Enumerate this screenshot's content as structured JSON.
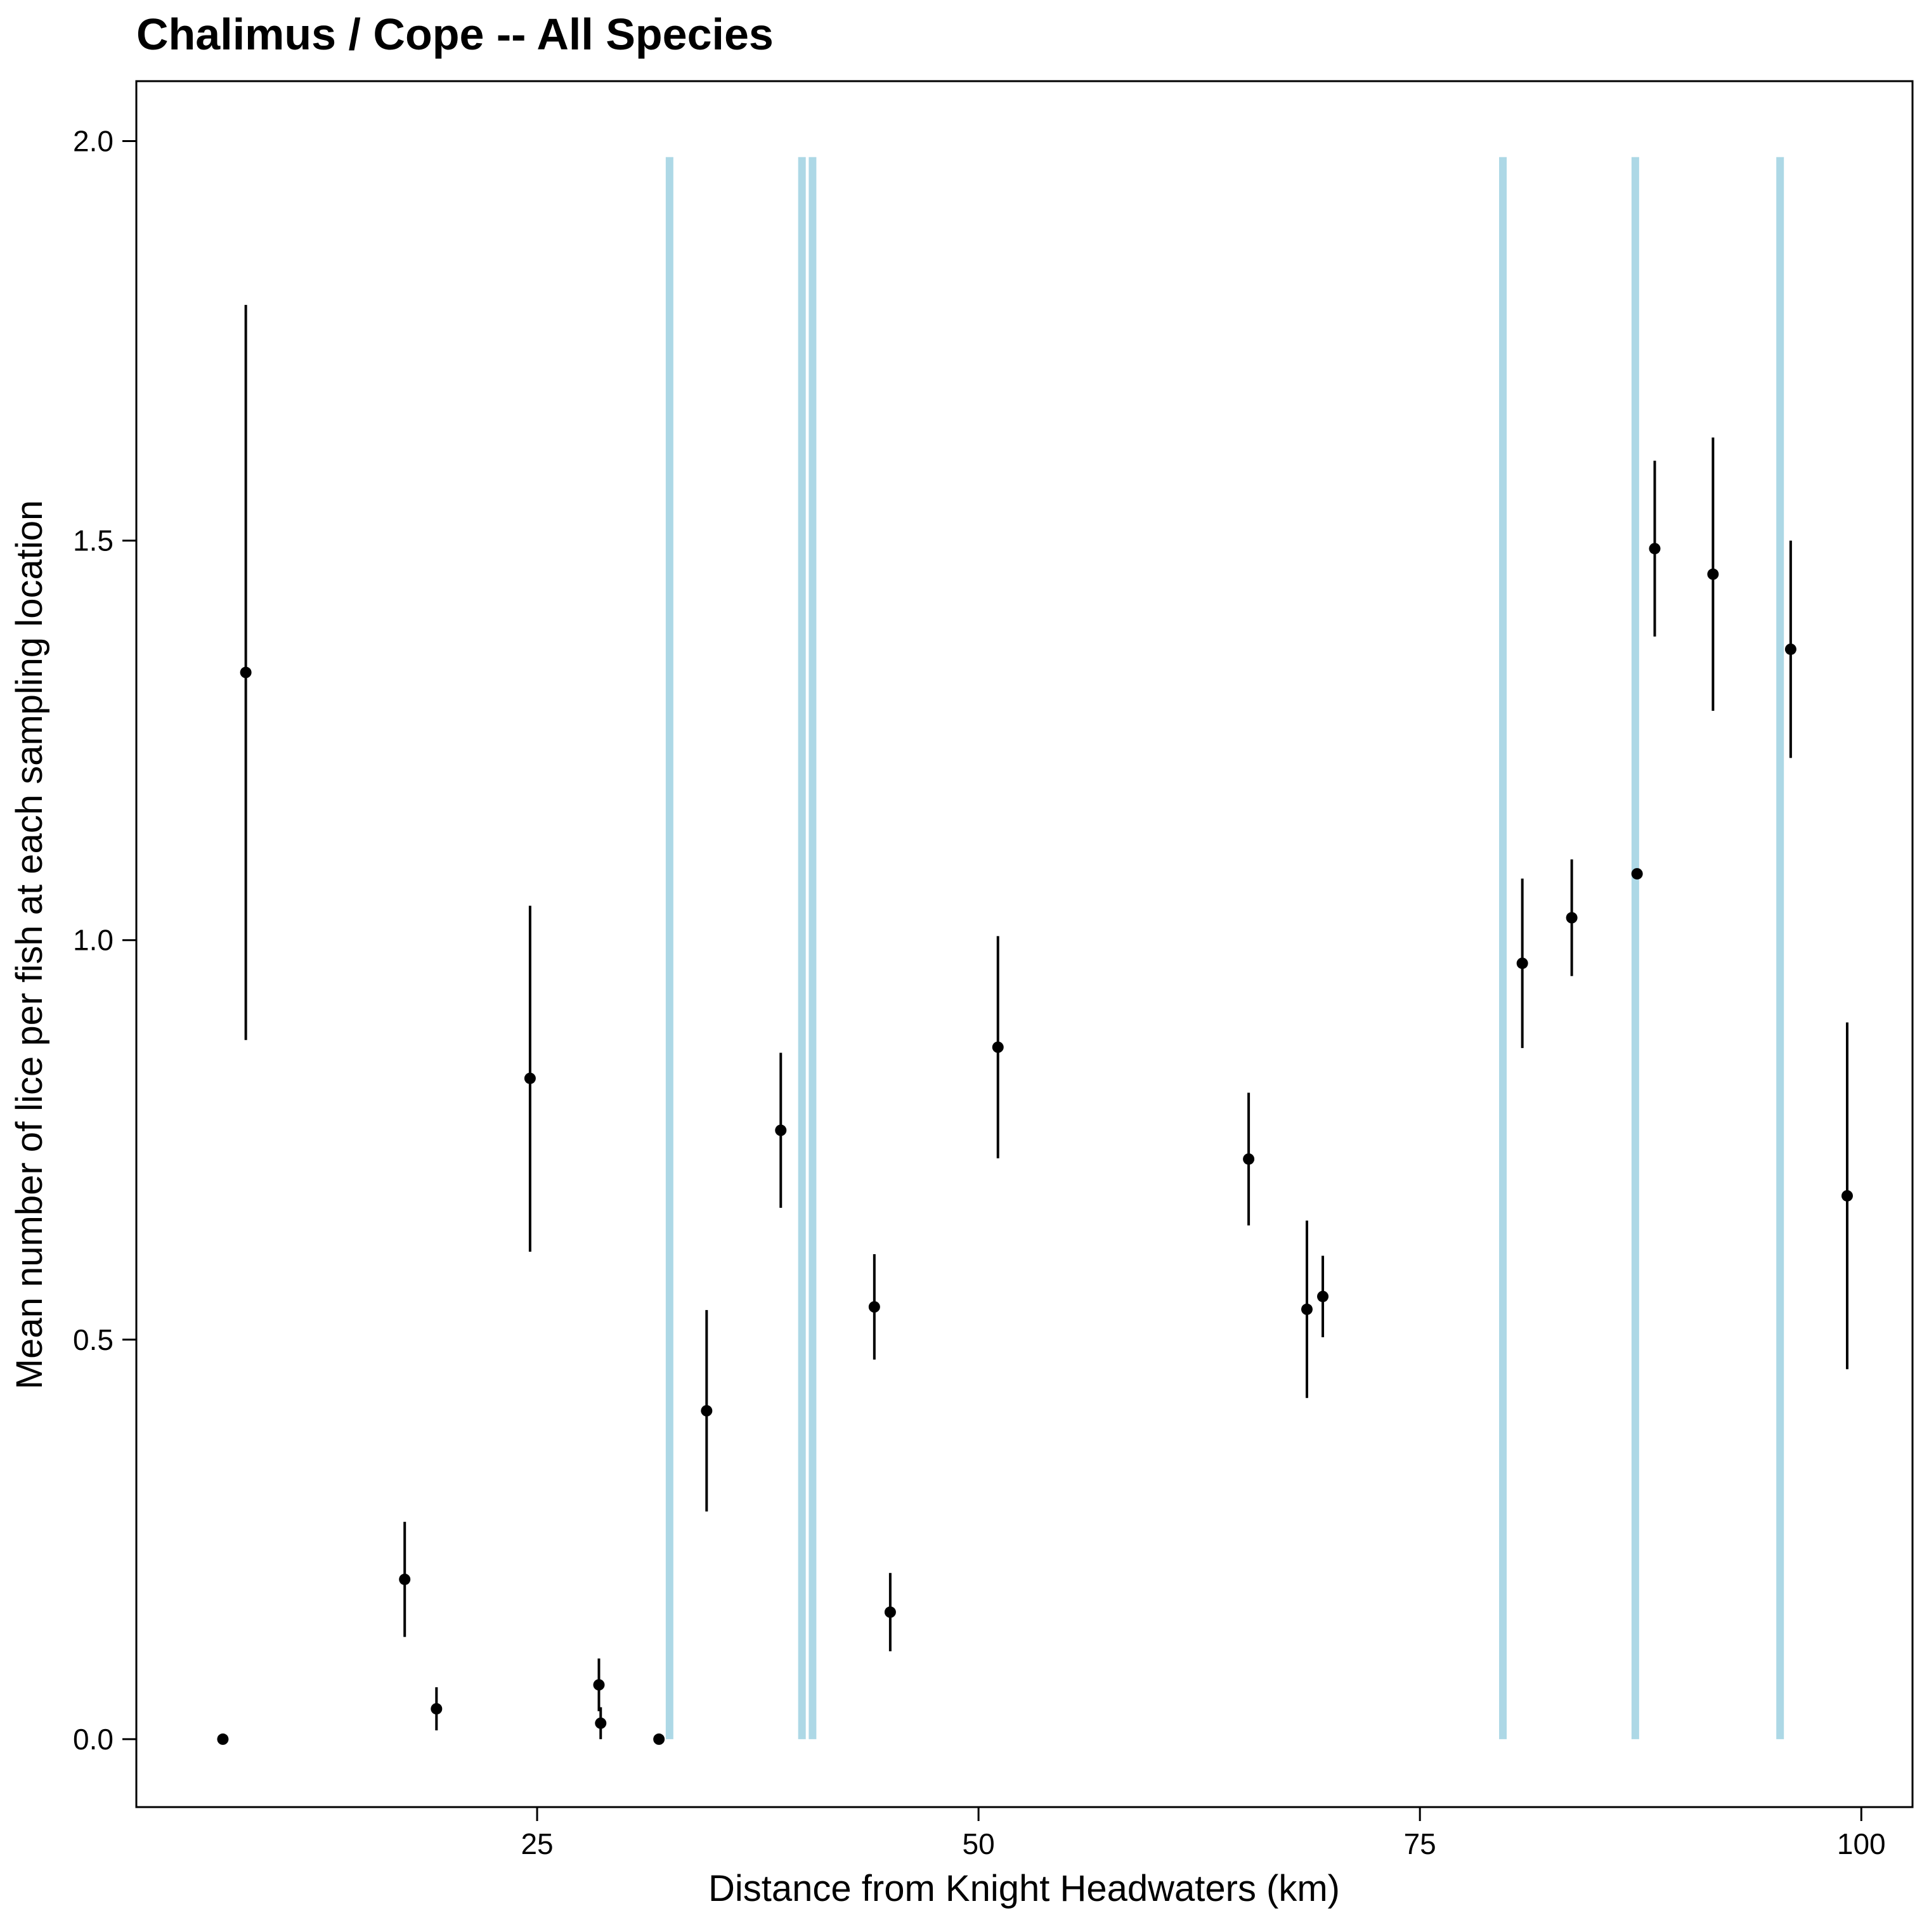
{
  "chart_data": {
    "type": "scatter",
    "title": "Chalimus / Cope -- All Species",
    "xlabel": "Distance from Knight Headwaters (km)",
    "ylabel": "Mean number of lice per fish at each sampling location",
    "xlim": [
      2.3,
      102.9
    ],
    "ylim": [
      -0.085,
      2.075
    ],
    "x_ticks": [
      25,
      50,
      75,
      100
    ],
    "x_tick_labels": [
      "25",
      "50",
      "75",
      "100"
    ],
    "y_ticks": [
      0.0,
      0.5,
      1.0,
      1.5,
      2.0
    ],
    "y_tick_labels": [
      "0.0",
      "0.5",
      "1.0",
      "1.5",
      "2.0"
    ],
    "grid": false,
    "legend": "none",
    "colors": {
      "points": "#000000",
      "reference_lines": "#add8e6",
      "frame": "#000000"
    },
    "reference_lines": {
      "orientation": "vertical",
      "y_range": [
        0.0,
        1.98
      ],
      "x": [
        32.5,
        40.0,
        40.6,
        79.7,
        87.2,
        95.4
      ]
    },
    "points": [
      {
        "x": 7.2,
        "y": 0.0
      },
      {
        "x": 8.5,
        "y": 1.335,
        "ylo": 0.875,
        "yhi": 1.795
      },
      {
        "x": 17.5,
        "y": 0.2,
        "ylo": 0.128,
        "yhi": 0.272
      },
      {
        "x": 19.3,
        "y": 0.038,
        "ylo": 0.011,
        "yhi": 0.065
      },
      {
        "x": 24.6,
        "y": 0.827,
        "ylo": 0.61,
        "yhi": 1.043
      },
      {
        "x": 28.5,
        "y": 0.068,
        "ylo": 0.035,
        "yhi": 0.101
      },
      {
        "x": 28.6,
        "y": 0.02,
        "ylo": 0.0,
        "yhi": 0.04
      },
      {
        "x": 31.9,
        "y": 0.0
      },
      {
        "x": 34.6,
        "y": 0.411,
        "ylo": 0.285,
        "yhi": 0.537
      },
      {
        "x": 38.8,
        "y": 0.762,
        "ylo": 0.665,
        "yhi": 0.859
      },
      {
        "x": 44.1,
        "y": 0.541,
        "ylo": 0.475,
        "yhi": 0.607
      },
      {
        "x": 45.0,
        "y": 0.159,
        "ylo": 0.11,
        "yhi": 0.208
      },
      {
        "x": 51.1,
        "y": 0.866,
        "ylo": 0.727,
        "yhi": 1.005
      },
      {
        "x": 65.3,
        "y": 0.726,
        "ylo": 0.643,
        "yhi": 0.809
      },
      {
        "x": 68.6,
        "y": 0.538,
        "ylo": 0.427,
        "yhi": 0.649
      },
      {
        "x": 69.5,
        "y": 0.554,
        "ylo": 0.503,
        "yhi": 0.605
      },
      {
        "x": 80.8,
        "y": 0.971,
        "ylo": 0.865,
        "yhi": 1.077
      },
      {
        "x": 83.6,
        "y": 1.028,
        "ylo": 0.955,
        "yhi": 1.101
      },
      {
        "x": 87.3,
        "y": 1.083
      },
      {
        "x": 88.3,
        "y": 1.49,
        "ylo": 1.38,
        "yhi": 1.6
      },
      {
        "x": 91.6,
        "y": 1.458,
        "ylo": 1.287,
        "yhi": 1.629
      },
      {
        "x": 96.0,
        "y": 1.364,
        "ylo": 1.228,
        "yhi": 1.5
      },
      {
        "x": 99.2,
        "y": 0.68,
        "ylo": 0.463,
        "yhi": 0.897
      }
    ]
  }
}
